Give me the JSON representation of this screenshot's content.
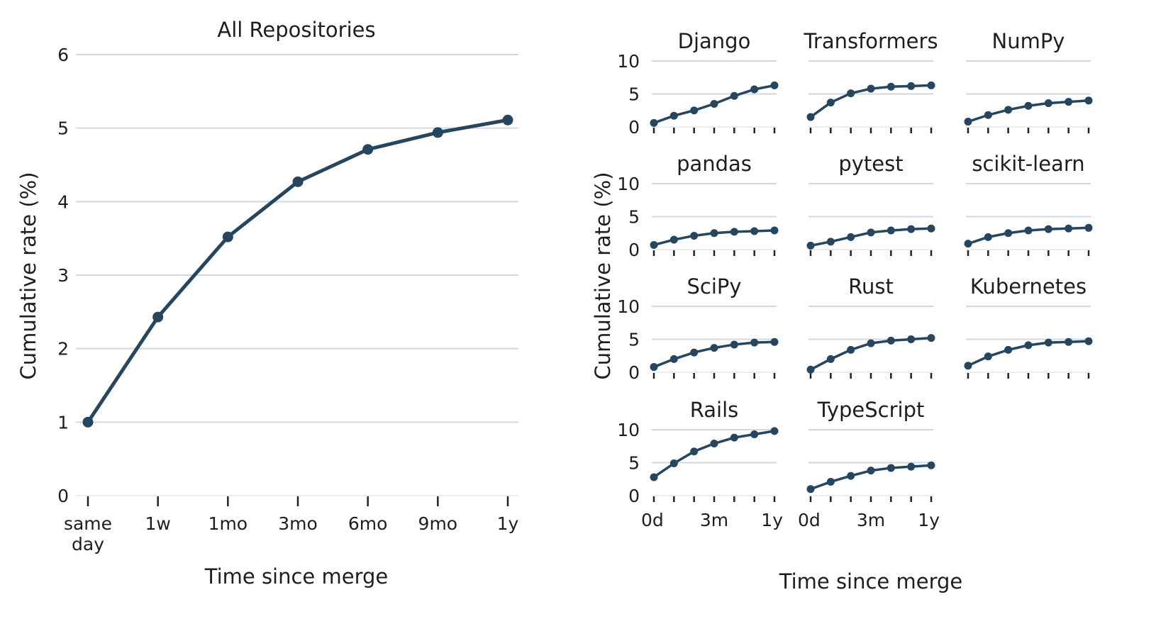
{
  "chart_data": [
    {
      "type": "line",
      "title": "All Repositories",
      "xlabel": "Time since merge",
      "ylabel": "Cumulative rate (%)",
      "categories": [
        "same day",
        "1w",
        "1mo",
        "3mo",
        "6mo",
        "9mo",
        "1y"
      ],
      "ylim": [
        0,
        6
      ],
      "yticks": [
        0,
        1,
        2,
        3,
        4,
        5,
        6
      ],
      "grid": true,
      "values": [
        1.0,
        2.43,
        3.52,
        4.27,
        4.71,
        4.94,
        5.11
      ]
    },
    {
      "type": "line",
      "xlabel": "Time since merge",
      "ylabel": "Cumulative rate (%)",
      "ylim": [
        0,
        11
      ],
      "yticks": [
        0,
        5,
        10
      ],
      "xtick_labels": [
        "0d",
        "3m",
        "1y"
      ],
      "grid": true,
      "panels": [
        {
          "title": "Django",
          "values": [
            0.6,
            1.7,
            2.5,
            3.5,
            4.7,
            5.7,
            6.3
          ]
        },
        {
          "title": "Transformers",
          "values": [
            1.5,
            3.7,
            5.1,
            5.8,
            6.1,
            6.2,
            6.3
          ]
        },
        {
          "title": "NumPy",
          "values": [
            0.8,
            1.8,
            2.6,
            3.2,
            3.6,
            3.8,
            4.0
          ]
        },
        {
          "title": "pandas",
          "values": [
            0.7,
            1.5,
            2.1,
            2.5,
            2.7,
            2.8,
            2.9
          ]
        },
        {
          "title": "pytest",
          "values": [
            0.6,
            1.2,
            1.9,
            2.6,
            2.9,
            3.1,
            3.2
          ]
        },
        {
          "title": "scikit-learn",
          "values": [
            0.9,
            1.9,
            2.5,
            2.9,
            3.1,
            3.2,
            3.3
          ]
        },
        {
          "title": "SciPy",
          "values": [
            0.8,
            2.0,
            3.0,
            3.7,
            4.2,
            4.5,
            4.6
          ]
        },
        {
          "title": "Rust",
          "values": [
            0.4,
            2.0,
            3.4,
            4.4,
            4.8,
            5.0,
            5.2
          ]
        },
        {
          "title": "Kubernetes",
          "values": [
            1.0,
            2.4,
            3.4,
            4.1,
            4.5,
            4.6,
            4.7
          ]
        },
        {
          "title": "Rails",
          "values": [
            2.8,
            4.9,
            6.7,
            7.9,
            8.8,
            9.3,
            9.8
          ]
        },
        {
          "title": "TypeScript",
          "values": [
            1.0,
            2.1,
            3.0,
            3.8,
            4.2,
            4.4,
            4.6
          ]
        }
      ]
    }
  ]
}
